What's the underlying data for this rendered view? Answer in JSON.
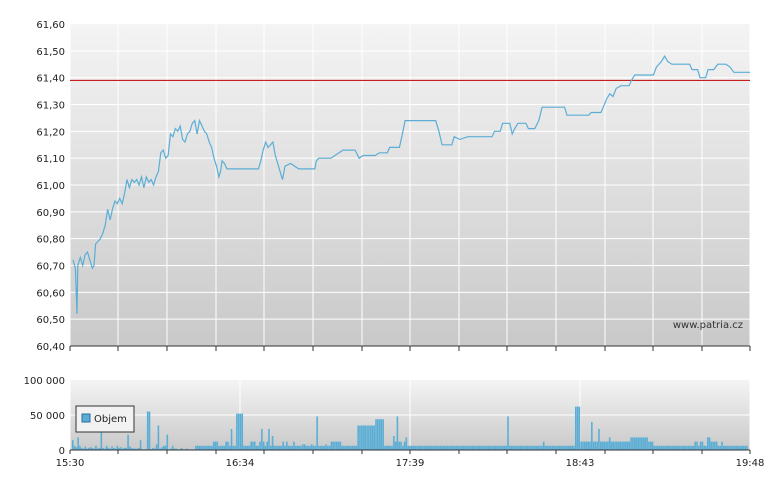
{
  "chart_data": [
    {
      "type": "line",
      "name": "price",
      "ylim": [
        60.4,
        61.6
      ],
      "yticks": [
        "61,60",
        "61,50",
        "61,40",
        "61,30",
        "61,20",
        "61,10",
        "61,00",
        "60,90",
        "60,80",
        "60,70",
        "60,60",
        "60,50",
        "60,40"
      ],
      "reference_line": 61.39,
      "watermark": "www.patria.cz",
      "grid": true,
      "colors": {
        "line": "#5aaed6",
        "reference": "#c00000"
      },
      "points": [
        [
          0.0,
          60.72
        ],
        [
          0.3,
          60.69
        ],
        [
          0.5,
          60.52
        ],
        [
          0.6,
          60.7
        ],
        [
          0.9,
          60.73
        ],
        [
          1.2,
          60.7
        ],
        [
          1.5,
          60.74
        ],
        [
          1.8,
          60.75
        ],
        [
          2.1,
          60.72
        ],
        [
          2.4,
          60.69
        ],
        [
          2.6,
          60.7
        ],
        [
          2.8,
          60.78
        ],
        [
          3.1,
          60.79
        ],
        [
          3.4,
          60.8
        ],
        [
          3.7,
          60.82
        ],
        [
          4.0,
          60.85
        ],
        [
          4.3,
          60.91
        ],
        [
          4.6,
          60.87
        ],
        [
          4.9,
          60.91
        ],
        [
          5.2,
          60.94
        ],
        [
          5.5,
          60.93
        ],
        [
          5.8,
          60.95
        ],
        [
          6.1,
          60.93
        ],
        [
          6.4,
          60.97
        ],
        [
          6.7,
          61.02
        ],
        [
          7.0,
          60.99
        ],
        [
          7.3,
          61.02
        ],
        [
          7.6,
          61.01
        ],
        [
          7.9,
          61.02
        ],
        [
          8.2,
          61.0
        ],
        [
          8.5,
          61.03
        ],
        [
          8.8,
          60.99
        ],
        [
          9.1,
          61.03
        ],
        [
          9.4,
          61.01
        ],
        [
          9.7,
          61.02
        ],
        [
          10.0,
          61.0
        ],
        [
          10.3,
          61.03
        ],
        [
          10.6,
          61.05
        ],
        [
          10.9,
          61.12
        ],
        [
          11.2,
          61.13
        ],
        [
          11.5,
          61.1
        ],
        [
          11.8,
          61.11
        ],
        [
          12.1,
          61.19
        ],
        [
          12.4,
          61.18
        ],
        [
          12.7,
          61.21
        ],
        [
          13.0,
          61.2
        ],
        [
          13.3,
          61.22
        ],
        [
          13.6,
          61.17
        ],
        [
          13.9,
          61.16
        ],
        [
          14.2,
          61.19
        ],
        [
          14.5,
          61.2
        ],
        [
          14.8,
          61.23
        ],
        [
          15.1,
          61.24
        ],
        [
          15.4,
          61.19
        ],
        [
          15.7,
          61.24
        ],
        [
          16.0,
          61.22
        ],
        [
          16.3,
          61.2
        ],
        [
          16.6,
          61.19
        ],
        [
          16.9,
          61.16
        ],
        [
          17.2,
          61.14
        ],
        [
          17.5,
          61.1
        ],
        [
          17.8,
          61.07
        ],
        [
          18.1,
          61.03
        ],
        [
          18.3,
          61.05
        ],
        [
          18.5,
          61.09
        ],
        [
          18.8,
          61.08
        ],
        [
          19.1,
          61.06
        ],
        [
          22.0,
          61.06
        ],
        [
          23.0,
          61.06
        ],
        [
          23.3,
          61.09
        ],
        [
          23.6,
          61.13
        ],
        [
          23.9,
          61.16
        ],
        [
          24.2,
          61.14
        ],
        [
          24.5,
          61.15
        ],
        [
          24.8,
          61.16
        ],
        [
          25.1,
          61.11
        ],
        [
          25.4,
          61.08
        ],
        [
          25.7,
          61.05
        ],
        [
          26.0,
          61.02
        ],
        [
          26.3,
          61.07
        ],
        [
          27.0,
          61.08
        ],
        [
          28.0,
          61.06
        ],
        [
          29.0,
          61.06
        ],
        [
          30.0,
          61.06
        ],
        [
          30.2,
          61.09
        ],
        [
          30.5,
          61.1
        ],
        [
          32.0,
          61.1
        ],
        [
          32.5,
          61.11
        ],
        [
          33.5,
          61.13
        ],
        [
          35.0,
          61.13
        ],
        [
          35.5,
          61.1
        ],
        [
          36.0,
          61.11
        ],
        [
          37.5,
          61.11
        ],
        [
          38.0,
          61.12
        ],
        [
          39.0,
          61.12
        ],
        [
          39.3,
          61.14
        ],
        [
          40.5,
          61.14
        ],
        [
          40.8,
          61.18
        ],
        [
          41.2,
          61.24
        ],
        [
          45.0,
          61.24
        ],
        [
          45.4,
          61.2
        ],
        [
          45.8,
          61.15
        ],
        [
          47.0,
          61.15
        ],
        [
          47.3,
          61.18
        ],
        [
          48.0,
          61.17
        ],
        [
          49.0,
          61.18
        ],
        [
          52.0,
          61.18
        ],
        [
          52.3,
          61.2
        ],
        [
          53.0,
          61.2
        ],
        [
          53.3,
          61.23
        ],
        [
          54.2,
          61.23
        ],
        [
          54.5,
          61.19
        ],
        [
          54.8,
          61.21
        ],
        [
          55.2,
          61.23
        ],
        [
          56.2,
          61.23
        ],
        [
          56.5,
          61.21
        ],
        [
          57.3,
          61.21
        ],
        [
          57.8,
          61.24
        ],
        [
          58.2,
          61.29
        ],
        [
          59.0,
          61.29
        ],
        [
          61.0,
          61.29
        ],
        [
          61.3,
          61.26
        ],
        [
          64.0,
          61.26
        ],
        [
          64.3,
          61.27
        ],
        [
          65.5,
          61.27
        ],
        [
          65.8,
          61.29
        ],
        [
          66.2,
          61.32
        ],
        [
          66.6,
          61.34
        ],
        [
          67.0,
          61.33
        ],
        [
          67.4,
          61.36
        ],
        [
          68.0,
          61.37
        ],
        [
          69.0,
          61.37
        ],
        [
          69.3,
          61.39
        ],
        [
          69.7,
          61.41
        ],
        [
          70.5,
          61.41
        ],
        [
          71.5,
          61.41
        ],
        [
          72.0,
          61.41
        ],
        [
          72.4,
          61.44
        ],
        [
          73.0,
          61.46
        ],
        [
          73.4,
          61.48
        ],
        [
          73.8,
          61.46
        ],
        [
          74.3,
          61.45
        ],
        [
          76.5,
          61.45
        ],
        [
          76.8,
          61.43
        ],
        [
          77.5,
          61.43
        ],
        [
          77.8,
          61.4
        ],
        [
          78.5,
          61.4
        ],
        [
          78.8,
          61.43
        ],
        [
          79.5,
          61.43
        ],
        [
          80.0,
          61.45
        ],
        [
          81.0,
          61.45
        ],
        [
          81.5,
          61.44
        ],
        [
          82.0,
          61.42
        ],
        [
          84.0,
          61.42
        ]
      ]
    },
    {
      "type": "bar",
      "name": "volume",
      "legend": "Objem",
      "ylim": [
        0,
        100000
      ],
      "yticks": [
        "100 000",
        "50 000",
        "0"
      ],
      "xticks": [
        "15:30",
        "16:34",
        "17:39",
        "18:43",
        "19:48"
      ],
      "grid": true,
      "colors": {
        "bar": "#5aaed6",
        "bar_edge": "#3b86b4"
      },
      "values": [
        14000,
        6000,
        4000,
        18000,
        6000,
        3000,
        2000,
        5000,
        2000,
        3000,
        4000,
        3000,
        2000,
        6000,
        2000,
        3000,
        25000,
        3000,
        2000,
        6000,
        3000,
        2000,
        5000,
        3000,
        2000,
        6000,
        3000,
        4000,
        2000,
        3000,
        3000,
        22000,
        5000,
        3000,
        2000,
        2000,
        2000,
        3000,
        14000,
        1000,
        1000,
        1000,
        55000,
        55000,
        1000,
        3000,
        2000,
        8000,
        35000,
        2000,
        4000,
        6000,
        6000,
        22000,
        1000,
        2000,
        6000,
        2000,
        2000,
        1000,
        1000,
        3000,
        1000,
        1000,
        2000,
        1000,
        1000,
        1000,
        1000,
        6000,
        6000,
        6000,
        6000,
        6000,
        6000,
        6000,
        6000,
        6000,
        6000,
        12000,
        12000,
        12000,
        6000,
        6000,
        6000,
        6000,
        12000,
        12000,
        6000,
        30000,
        6000,
        6000,
        52000,
        52000,
        52000,
        52000,
        6000,
        6000,
        6000,
        6000,
        12000,
        12000,
        12000,
        6000,
        6000,
        12000,
        30000,
        12000,
        6000,
        12000,
        30000,
        6000,
        20000,
        6000,
        6000,
        6000,
        6000,
        6000,
        12000,
        6000,
        12000,
        6000,
        6000,
        6000,
        12000,
        6000,
        6000,
        6000,
        6000,
        8000,
        8000,
        6000,
        6000,
        6000,
        8000,
        6000,
        6000,
        48000,
        6000,
        6000,
        6000,
        6000,
        8000,
        6000,
        6000,
        12000,
        12000,
        12000,
        12000,
        12000,
        12000,
        6000,
        6000,
        6000,
        6000,
        6000,
        6000,
        6000,
        6000,
        6000,
        35000,
        35000,
        35000,
        35000,
        35000,
        35000,
        35000,
        35000,
        35000,
        35000,
        44000,
        44000,
        44000,
        44000,
        44000,
        6000,
        6000,
        6000,
        6000,
        6000,
        20000,
        12000,
        48000,
        12000,
        12000,
        6000,
        12000,
        18000,
        6000,
        6000,
        6000,
        6000,
        6000,
        6000,
        6000,
        6000,
        6000,
        6000,
        6000,
        6000,
        6000,
        6000,
        6000,
        6000,
        6000,
        6000,
        6000,
        6000,
        6000,
        6000,
        6000,
        6000,
        6000,
        6000,
        6000,
        6000,
        6000,
        6000,
        6000,
        6000,
        6000,
        6000,
        6000,
        6000,
        6000,
        6000,
        6000,
        6000,
        6000,
        6000,
        6000,
        6000,
        6000,
        6000,
        6000,
        6000,
        6000,
        6000,
        6000,
        6000,
        6000,
        6000,
        6000,
        6000,
        48000,
        6000,
        6000,
        6000,
        6000,
        6000,
        6000,
        6000,
        6000,
        6000,
        6000,
        6000,
        6000,
        6000,
        6000,
        6000,
        6000,
        6000,
        6000,
        6000,
        12000,
        6000,
        6000,
        6000,
        6000,
        6000,
        6000,
        6000,
        6000,
        6000,
        6000,
        6000,
        6000,
        6000,
        6000,
        6000,
        6000,
        6000,
        62000,
        62000,
        62000,
        12000,
        12000,
        12000,
        12000,
        12000,
        12000,
        40000,
        12000,
        12000,
        12000,
        30000,
        12000,
        12000,
        12000,
        12000,
        12000,
        18000,
        12000,
        12000,
        12000,
        12000,
        12000,
        12000,
        12000,
        12000,
        12000,
        12000,
        12000,
        18000,
        18000,
        18000,
        18000,
        18000,
        18000,
        18000,
        18000,
        18000,
        18000,
        12000,
        12000,
        12000,
        6000,
        6000,
        6000,
        6000,
        6000,
        6000,
        6000,
        6000,
        6000,
        6000,
        6000,
        6000,
        6000,
        6000,
        6000,
        6000,
        6000,
        6000,
        6000,
        6000,
        6000,
        6000,
        6000,
        12000,
        12000,
        6000,
        12000,
        12000,
        6000,
        6000,
        18000,
        18000,
        12000,
        12000,
        12000,
        12000,
        6000,
        6000,
        12000,
        6000,
        6000,
        6000,
        6000,
        6000,
        6000,
        6000,
        6000,
        6000,
        6000,
        6000,
        6000,
        6000,
        6000
      ]
    }
  ]
}
